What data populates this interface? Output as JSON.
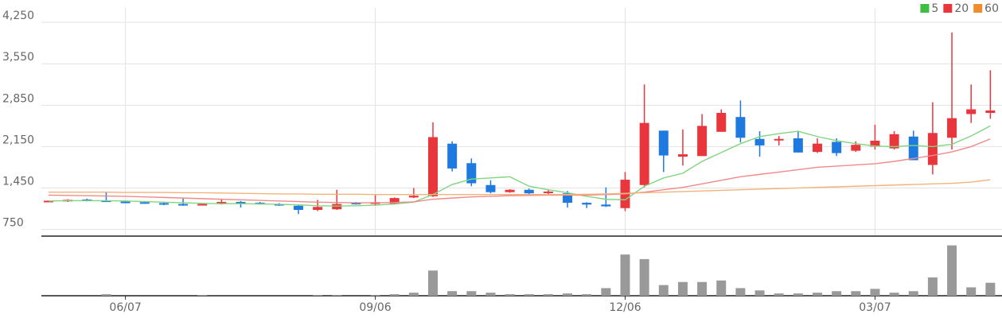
{
  "chart_data": {
    "type": "candlestick",
    "categories": [
      null,
      null,
      null,
      null,
      "06/07",
      null,
      null,
      null,
      null,
      null,
      null,
      null,
      null,
      null,
      null,
      null,
      null,
      "09/06",
      null,
      null,
      null,
      null,
      null,
      null,
      null,
      null,
      null,
      null,
      null,
      null,
      "12/06",
      null,
      null,
      null,
      null,
      null,
      null,
      null,
      null,
      null,
      null,
      null,
      null,
      "03/07",
      null,
      null,
      null,
      null,
      null,
      null
    ],
    "open": [
      1220,
      1225,
      1255,
      1240,
      1220,
      1210,
      1195,
      1180,
      1165,
      1180,
      1215,
      1200,
      1180,
      1150,
      1080,
      1090,
      1200,
      1180,
      1180,
      1290,
      1310,
      2200,
      1870,
      1500,
      1380,
      1420,
      1370,
      1360,
      1200,
      1170,
      1110,
      1500,
      2420,
      1980,
      1990,
      2400,
      2650,
      2280,
      2260,
      2290,
      2060,
      2230,
      2080,
      2150,
      2120,
      2320,
      1840,
      2300,
      2700,
      2720
    ],
    "high": [
      1240,
      1260,
      1270,
      1380,
      1235,
      1225,
      1210,
      1280,
      1195,
      1260,
      1230,
      1215,
      1195,
      1160,
      1250,
      1420,
      1215,
      1330,
      1290,
      1450,
      2560,
      2240,
      1950,
      1580,
      1430,
      1440,
      1420,
      1400,
      1210,
      1460,
      1720,
      3200,
      2420,
      2440,
      2700,
      2780,
      2930,
      2410,
      2330,
      2410,
      2290,
      2290,
      2240,
      2520,
      2410,
      2420,
      2900,
      4080,
      3200,
      3440
    ],
    "low": [
      1215,
      1215,
      1225,
      1215,
      1200,
      1185,
      1160,
      1150,
      1155,
      1170,
      1120,
      1170,
      1150,
      1010,
      1060,
      1080,
      1170,
      1150,
      1170,
      1280,
      1300,
      1730,
      1480,
      1360,
      1370,
      1320,
      1340,
      1120,
      1110,
      1130,
      1060,
      1460,
      1720,
      1830,
      1990,
      2400,
      2220,
      1980,
      2170,
      2050,
      2040,
      1990,
      2060,
      2100,
      2100,
      1920,
      1680,
      2100,
      2550,
      2620
    ],
    "close": [
      1235,
      1250,
      1235,
      1225,
      1205,
      1195,
      1170,
      1160,
      1180,
      1215,
      1185,
      1180,
      1165,
      1080,
      1130,
      1180,
      1180,
      1210,
      1280,
      1320,
      2310,
      1780,
      1530,
      1380,
      1420,
      1360,
      1390,
      1200,
      1170,
      1140,
      1590,
      2550,
      2000,
      2020,
      2500,
      2720,
      2300,
      2170,
      2280,
      2050,
      2200,
      2040,
      2180,
      2250,
      2360,
      1920,
      2380,
      2630,
      2780,
      2760
    ],
    "up_color": "#e8363c",
    "down_color": "#1f7ae0",
    "moving_averages": [
      {
        "name": "5",
        "color": "#3fbf3f",
        "line_color": "#7fd67f",
        "values": [
          1230,
          1235,
          1235,
          1235,
          1230,
          1220,
          1210,
          1200,
          1190,
          1185,
          1185,
          1180,
          1175,
          1165,
          1150,
          1145,
          1150,
          1160,
          1180,
          1210,
          1340,
          1510,
          1600,
          1620,
          1640,
          1480,
          1420,
          1370,
          1310,
          1260,
          1250,
          1480,
          1620,
          1700,
          1900,
          2050,
          2200,
          2320,
          2370,
          2410,
          2320,
          2250,
          2200,
          2160,
          2150,
          2170,
          2150,
          2190,
          2330,
          2500
        ]
      },
      {
        "name": "20",
        "color": "#e8363c",
        "line_color": "#f08a8a",
        "values": [
          1330,
          1325,
          1320,
          1315,
          1310,
          1300,
          1290,
          1280,
          1270,
          1260,
          1250,
          1240,
          1230,
          1220,
          1210,
          1205,
          1200,
          1200,
          1205,
          1215,
          1260,
          1280,
          1300,
          1310,
          1320,
          1325,
          1330,
          1330,
          1330,
          1340,
          1350,
          1380,
          1420,
          1460,
          1520,
          1580,
          1640,
          1680,
          1720,
          1760,
          1800,
          1820,
          1840,
          1860,
          1900,
          1950,
          2000,
          2060,
          2150,
          2280
        ]
      },
      {
        "name": "60",
        "color": "#f08c2c",
        "line_color": "#f4b27a",
        "values": [
          1380,
          1380,
          1380,
          1380,
          1375,
          1375,
          1375,
          1370,
          1370,
          1365,
          1360,
          1355,
          1350,
          1350,
          1345,
          1345,
          1345,
          1340,
          1340,
          1340,
          1340,
          1340,
          1340,
          1340,
          1340,
          1340,
          1340,
          1340,
          1345,
          1350,
          1360,
          1370,
          1380,
          1390,
          1400,
          1410,
          1420,
          1430,
          1440,
          1450,
          1460,
          1470,
          1480,
          1490,
          1500,
          1510,
          1520,
          1530,
          1550,
          1590
        ]
      }
    ],
    "volume": {
      "color": "#999999",
      "ylim": [
        0,
        75
      ],
      "values": [
        0,
        0,
        0,
        2,
        0,
        0,
        0,
        0,
        1,
        0,
        0,
        0,
        0,
        0,
        1,
        1,
        0,
        1,
        2,
        4,
        33,
        6,
        6,
        4,
        2,
        2,
        2,
        3,
        2,
        10,
        54,
        48,
        14,
        18,
        18,
        20,
        10,
        7,
        3,
        3,
        4,
        6,
        6,
        9,
        4,
        6,
        24,
        66,
        11,
        17
      ]
    },
    "ylim": [
      650,
      4400
    ],
    "yticks": [
      750,
      {
        "value": 1450,
        "label": "1,450"
      },
      {
        "value": 2150,
        "label": "2,150"
      },
      {
        "value": 2850,
        "label": "2,850"
      },
      {
        "value": 3550,
        "label": "3,550"
      },
      {
        "value": 4250,
        "label": "4,250"
      }
    ],
    "grid": true,
    "legend": "top-right"
  }
}
